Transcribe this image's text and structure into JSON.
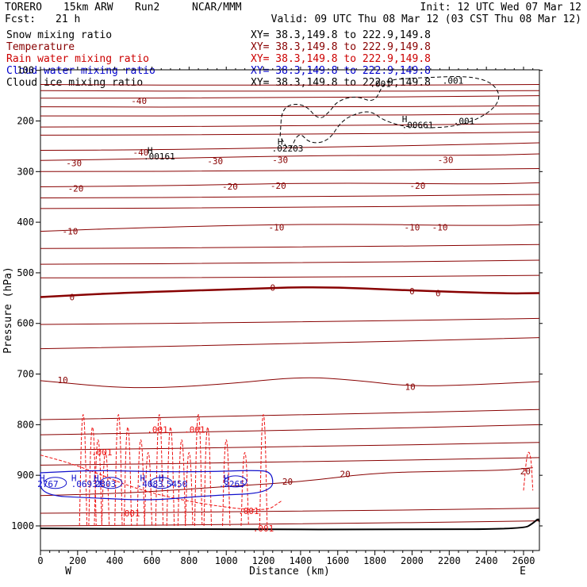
{
  "header": {
    "model": "TORERO",
    "resolution": "15km ARW",
    "run": "Run2",
    "org": "NCAR/MMM",
    "init": "Init: 12 UTC Wed 07 Mar 12",
    "fcst_label": "Fcst:",
    "fcst_value": "21 h",
    "valid": "Valid: 09 UTC Thu 08 Mar 12 (03 CST Thu 08 Mar 12)"
  },
  "legend": [
    {
      "label": "Snow mixing ratio",
      "xy": "XY=  38.3,149.8 to 222.9,149.8",
      "color": "#000000"
    },
    {
      "label": "Temperature",
      "xy": "XY=  38.3,149.8 to 222.9,149.8",
      "color": "#880000"
    },
    {
      "label": "Rain water mixing ratio",
      "xy": "XY=  38.3,149.8 to 222.9,149.8",
      "color": "#cc0000"
    },
    {
      "label": "Cloud water mixing ratio",
      "xy": "XY=  38.3,149.8 to 222.9,149.8",
      "color": "#0000cc"
    },
    {
      "label": "Cloud ice mixing ratio",
      "xy": "XY=  38.3,149.8 to 222.9,149.8",
      "color": "#000000"
    }
  ],
  "colors": {
    "temperature": "#880000",
    "rain": "#ee1111",
    "cloud_water": "#1111cc",
    "ice": "#000000",
    "axis": "#000000"
  },
  "chart_data": {
    "type": "cross-section",
    "xlabel": "Distance (km)",
    "ylabel": "Pressure (hPa)",
    "xlim": [
      0,
      2700
    ],
    "ylim": [
      1050,
      100
    ],
    "x_ticks": [
      0,
      200,
      400,
      600,
      800,
      1000,
      1200,
      1400,
      1600,
      1800,
      2000,
      2200,
      2400,
      2600
    ],
    "y_ticks": [
      100,
      200,
      300,
      400,
      500,
      600,
      700,
      800,
      900,
      1000
    ],
    "y_tick_labels": [
      "100",
      "200",
      "300",
      "400",
      "500",
      "600",
      "700",
      "800",
      "900",
      "1000"
    ],
    "x_end_labels": {
      "left": "W",
      "right": "E"
    },
    "temperature_contours": [
      {
        "label": "-40",
        "points": [
          [
            0,
            258
          ],
          [
            600,
            257
          ],
          [
            1500,
            252
          ],
          [
            2400,
            246
          ],
          [
            2700,
            243
          ]
        ]
      },
      {
        "label": "-30",
        "points": [
          [
            0,
            278
          ],
          [
            700,
            274
          ],
          [
            1500,
            268
          ],
          [
            2400,
            268
          ],
          [
            2700,
            265
          ]
        ]
      },
      {
        "label": "-20",
        "points": [
          [
            0,
            330
          ],
          [
            700,
            328
          ],
          [
            1500,
            322
          ],
          [
            2400,
            325
          ],
          [
            2700,
            322
          ]
        ]
      },
      {
        "label": "-10",
        "points": [
          [
            0,
            418
          ],
          [
            600,
            410
          ],
          [
            1500,
            403
          ],
          [
            2400,
            407
          ],
          [
            2700,
            405
          ]
        ]
      },
      {
        "label": "0",
        "points": [
          [
            0,
            548
          ],
          [
            400,
            540
          ],
          [
            1000,
            533
          ],
          [
            1500,
            527
          ],
          [
            2000,
            535
          ],
          [
            2500,
            541
          ],
          [
            2700,
            540
          ]
        ]
      },
      {
        "label": "10",
        "points": [
          [
            0,
            713
          ],
          [
            500,
            730
          ],
          [
            1000,
            720
          ],
          [
            1400,
            705
          ],
          [
            1700,
            712
          ],
          [
            2000,
            725
          ],
          [
            2400,
            720
          ],
          [
            2700,
            715
          ]
        ]
      },
      {
        "label": "20",
        "points": [
          [
            0,
            940
          ],
          [
            500,
            935
          ],
          [
            1000,
            922
          ],
          [
            1400,
            913
          ],
          [
            1800,
            895
          ],
          [
            2200,
            892
          ],
          [
            2500,
            890
          ],
          [
            2650,
            885
          ]
        ]
      }
    ],
    "contour_labels": [
      {
        "text": "-40",
        "x": 540,
        "p": 262,
        "series": "temperature"
      },
      {
        "text": "-30",
        "x": 180,
        "p": 283,
        "series": "temperature"
      },
      {
        "text": "-30",
        "x": 940,
        "p": 279,
        "series": "temperature"
      },
      {
        "text": "-30",
        "x": 1290,
        "p": 277,
        "series": "temperature"
      },
      {
        "text": "-30",
        "x": 2180,
        "p": 277,
        "series": "temperature"
      },
      {
        "text": "-20",
        "x": 190,
        "p": 333,
        "series": "temperature"
      },
      {
        "text": "-20",
        "x": 1020,
        "p": 329,
        "series": "temperature"
      },
      {
        "text": "-20",
        "x": 1280,
        "p": 328,
        "series": "temperature"
      },
      {
        "text": "-20",
        "x": 2030,
        "p": 328,
        "series": "temperature"
      },
      {
        "text": "-10",
        "x": 160,
        "p": 418,
        "series": "temperature"
      },
      {
        "text": "-10",
        "x": 1270,
        "p": 410,
        "series": "temperature"
      },
      {
        "text": "-10",
        "x": 2000,
        "p": 410,
        "series": "temperature"
      },
      {
        "text": "-10",
        "x": 2150,
        "p": 410,
        "series": "temperature"
      },
      {
        "text": "0",
        "x": 170,
        "p": 548,
        "series": "temperature"
      },
      {
        "text": "0",
        "x": 1250,
        "p": 529,
        "series": "temperature"
      },
      {
        "text": "0",
        "x": 2000,
        "p": 536,
        "series": "temperature"
      },
      {
        "text": "0",
        "x": 2140,
        "p": 540,
        "series": "temperature"
      },
      {
        "text": "10",
        "x": 120,
        "p": 712,
        "series": "temperature"
      },
      {
        "text": "10",
        "x": 1990,
        "p": 725,
        "series": "temperature"
      },
      {
        "text": "20",
        "x": 1330,
        "p": 912,
        "series": "temperature"
      },
      {
        "text": "20",
        "x": 1640,
        "p": 897,
        "series": "temperature"
      },
      {
        "text": "20",
        "x": 2610,
        "p": 892,
        "series": "temperature"
      },
      {
        "text": "-40",
        "x": 530,
        "p": 160,
        "series": "temperature"
      },
      {
        "text": "H",
        "x": 590,
        "p": 258,
        "series": "ice"
      },
      {
        "text": ".00161",
        "x": 640,
        "p": 270,
        "series": "ice"
      },
      {
        "text": "H",
        "x": 1290,
        "p": 241,
        "series": "ice"
      },
      {
        "text": ".02203",
        "x": 1330,
        "p": 254,
        "series": "ice"
      },
      {
        "text": "H",
        "x": 1960,
        "p": 196,
        "series": "ice"
      },
      {
        "text": ".00661",
        "x": 2030,
        "p": 208,
        "series": "ice"
      },
      {
        "text": ".001",
        "x": 2280,
        "p": 200,
        "series": "ice"
      },
      {
        "text": ".001",
        "x": 1830,
        "p": 126,
        "series": "ice"
      },
      {
        "text": ".001",
        "x": 2220,
        "p": 120,
        "series": "ice"
      },
      {
        "text": ".001",
        "x": 630,
        "p": 810,
        "series": "rain"
      },
      {
        "text": ".001",
        "x": 830,
        "p": 810,
        "series": "rain"
      },
      {
        "text": ".001",
        "x": 330,
        "p": 854,
        "series": "rain"
      },
      {
        "text": ".001",
        "x": 480,
        "p": 975,
        "series": "rain"
      },
      {
        "text": ".001",
        "x": 1120,
        "p": 970,
        "series": "rain"
      },
      {
        "text": ".001",
        "x": 1200,
        "p": 1005,
        "series": "rain"
      },
      {
        "text": "H",
        "x": 10,
        "p": 905,
        "series": "cloud_water"
      },
      {
        "text": "2767",
        "x": 40,
        "p": 917,
        "series": "cloud_water"
      },
      {
        "text": "H",
        "x": 180,
        "p": 905,
        "series": "cloud_water"
      },
      {
        "text": ".06932",
        "x": 250,
        "p": 917,
        "series": "cloud_water"
      },
      {
        "text": "H",
        "x": 300,
        "p": 905,
        "series": "cloud_water"
      },
      {
        "text": "2803",
        "x": 350,
        "p": 917,
        "series": "cloud_water"
      },
      {
        "text": "H",
        "x": 550,
        "p": 905,
        "series": "cloud_water"
      },
      {
        "text": ".4083",
        "x": 590,
        "p": 917,
        "series": "cloud_water"
      },
      {
        "text": "H",
        "x": 650,
        "p": 905,
        "series": "cloud_water"
      },
      {
        "text": ".5450",
        "x": 720,
        "p": 917,
        "series": "cloud_water"
      },
      {
        "text": "H",
        "x": 1000,
        "p": 905,
        "series": "cloud_water"
      },
      {
        "text": ".2265",
        "x": 1030,
        "p": 917,
        "series": "cloud_water"
      }
    ]
  }
}
